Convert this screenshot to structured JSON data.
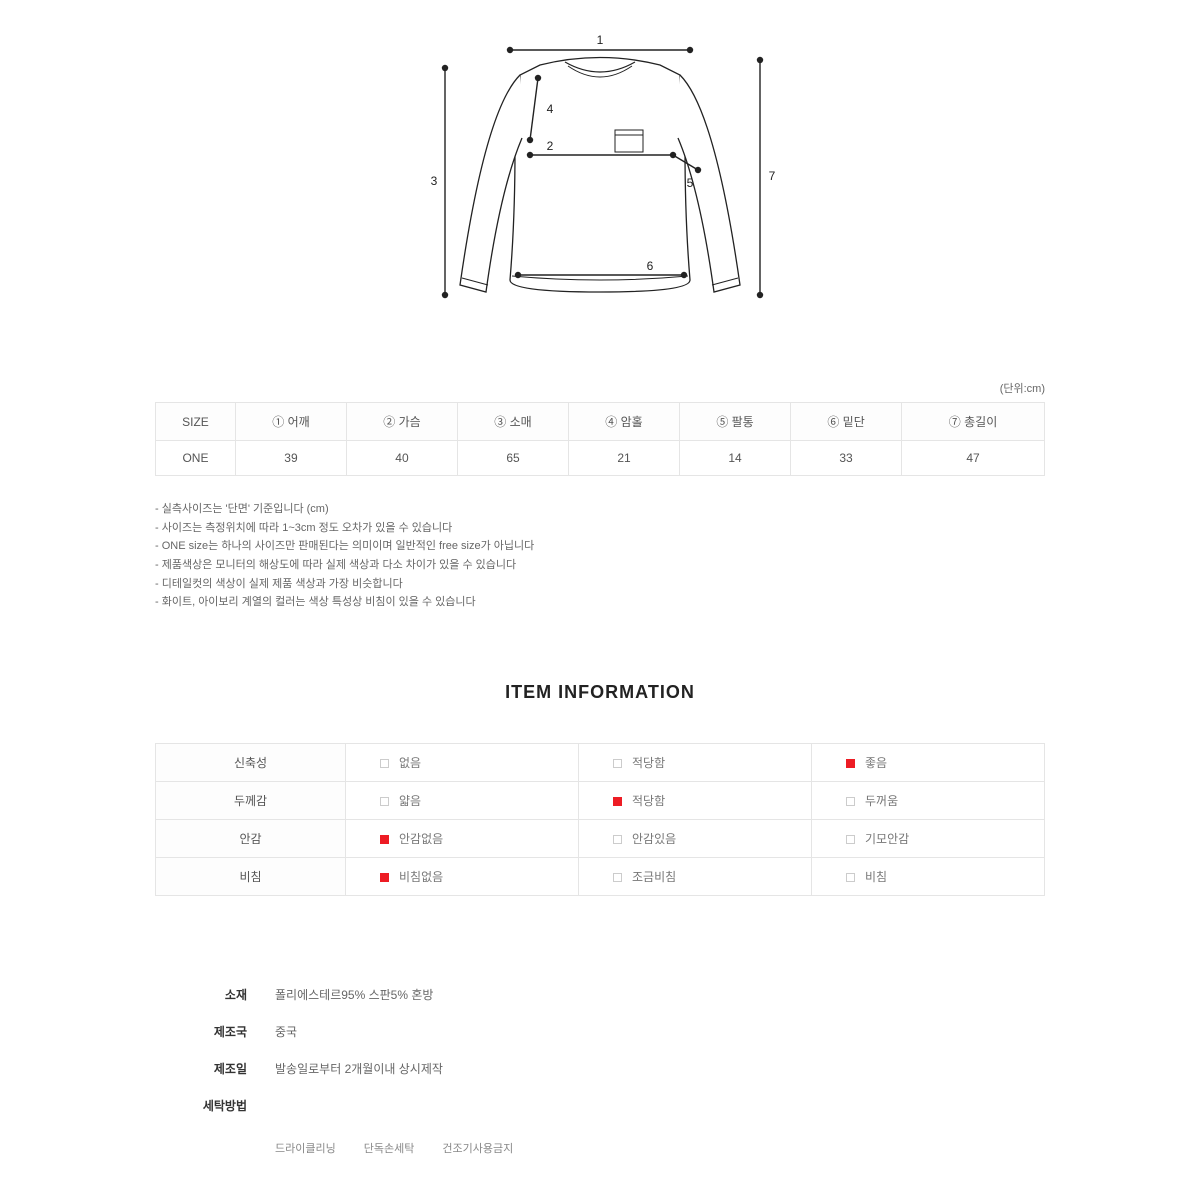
{
  "unit_label": "(단위:cm)",
  "diagram": {
    "labels": [
      "1",
      "2",
      "3",
      "4",
      "5",
      "6",
      "7"
    ],
    "stroke": "#222222",
    "fill": "#ffffff",
    "dot_r": 3.2
  },
  "size_table": {
    "headers": [
      "SIZE",
      "① 어깨",
      "② 가슴",
      "③ 소매",
      "④ 암홀",
      "⑤ 팔통",
      "⑥ 밑단",
      "⑦ 총길이"
    ],
    "rows": [
      [
        "ONE",
        "39",
        "40",
        "65",
        "21",
        "14",
        "33",
        "47"
      ]
    ]
  },
  "notes": [
    "- 실측사이즈는 '단면' 기준입니다 (cm)",
    "- 사이즈는 측정위치에 따라 1~3cm 정도 오차가 있을 수 있습니다",
    "- ONE size는 하나의 사이즈만 판매된다는 의미이며 일반적인 free size가 아닙니다",
    "- 제품색상은 모니터의 해상도에 따라 실제 색상과 다소 차이가 있을 수 있습니다",
    "- 디테일컷의 색상이 실제 제품 색상과 가장 비슷합니다",
    "- 화이트, 아이보리 계열의 컬러는 색상 특성상 비침이 있을 수 있습니다"
  ],
  "info_title": "ITEM INFORMATION",
  "info_table": {
    "rows": [
      {
        "label": "신축성",
        "opts": [
          {
            "t": "없음",
            "on": false
          },
          {
            "t": "적당함",
            "on": false
          },
          {
            "t": "좋음",
            "on": true
          }
        ]
      },
      {
        "label": "두께감",
        "opts": [
          {
            "t": "얇음",
            "on": false
          },
          {
            "t": "적당함",
            "on": true
          },
          {
            "t": "두꺼움",
            "on": false
          }
        ]
      },
      {
        "label": "안감",
        "opts": [
          {
            "t": "안감없음",
            "on": true
          },
          {
            "t": "안감있음",
            "on": false
          },
          {
            "t": "기모안감",
            "on": false
          }
        ]
      },
      {
        "label": "비침",
        "opts": [
          {
            "t": "비침없음",
            "on": true
          },
          {
            "t": "조금비침",
            "on": false
          },
          {
            "t": "비침",
            "on": false
          }
        ]
      }
    ]
  },
  "details": [
    {
      "label": "소재",
      "value": "폴리에스테르95% 스판5% 혼방"
    },
    {
      "label": "제조국",
      "value": "중국"
    },
    {
      "label": "제조일",
      "value": "발송일로부터 2개월이내 상시제작"
    },
    {
      "label": "세탁방법",
      "value": ""
    }
  ],
  "wash": [
    "드라이클리닝",
    "단독손세탁",
    "건조기사용금지"
  ]
}
